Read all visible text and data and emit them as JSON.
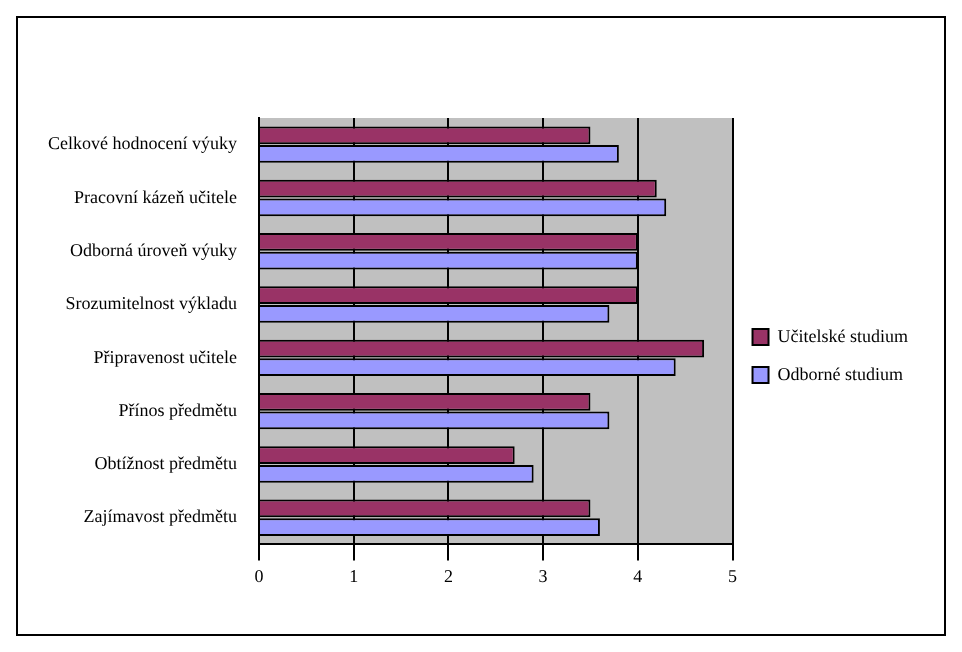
{
  "chart_data": {
    "type": "bar",
    "orientation": "horizontal",
    "categories": [
      "Celkové hodnocení výuky",
      "Pracovní kázeň učitele",
      "Odborná úroveň výuky",
      "Srozumitelnost výkladu",
      "Připravenost učitele",
      "Přínos předmětu",
      "Obtížnost předmětu",
      "Zajímavost předmětu"
    ],
    "series": [
      {
        "name": "Učitelské studium",
        "color": "#993366",
        "values": [
          3.5,
          4.2,
          4.0,
          4.0,
          4.7,
          3.5,
          2.7,
          3.5
        ]
      },
      {
        "name": "Odborné studium",
        "color": "#9999ff",
        "values": [
          3.8,
          4.3,
          4.0,
          3.7,
          4.4,
          3.7,
          2.9,
          3.6
        ]
      }
    ],
    "xlim": [
      0,
      5
    ],
    "xticks": [
      0,
      1,
      2,
      3,
      4,
      5
    ],
    "grid": "x",
    "legend": "right"
  }
}
